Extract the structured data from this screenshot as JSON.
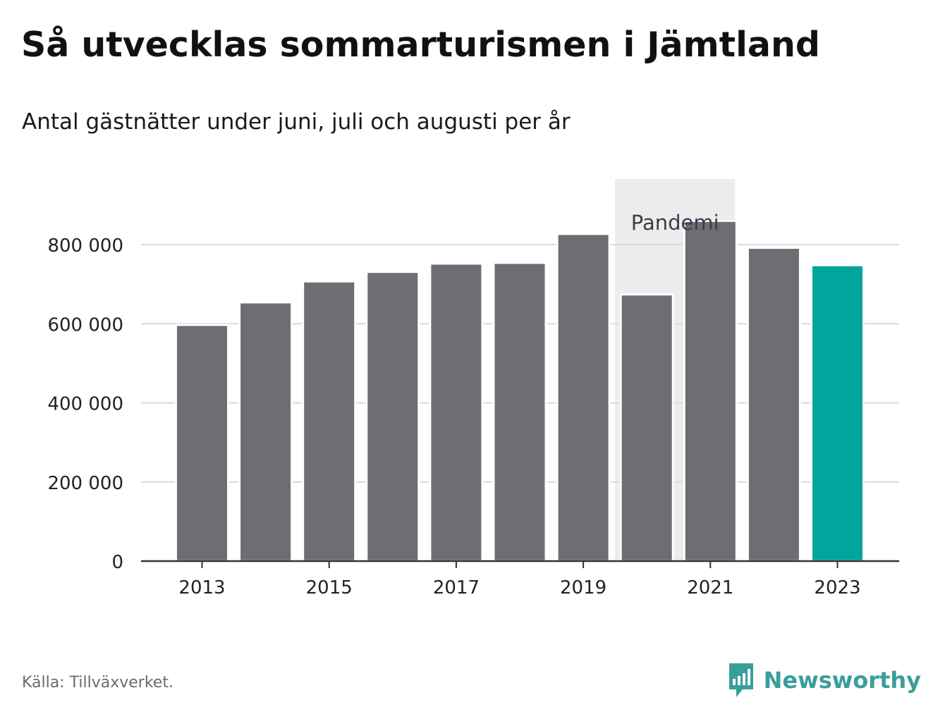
{
  "header": {
    "title": "Så utvecklas sommarturismen i Jämtland",
    "subtitle": "Antal gästnätter under juni, juli och augusti per år"
  },
  "footer": {
    "source": "Källa: Tillväxverket.",
    "brand": "Newsworthy"
  },
  "colors": {
    "bar": "#6e6d73",
    "highlight": "#00a59b",
    "pandemic_band": "#ececec",
    "grid": "#dadada",
    "axis": "#333333",
    "brand": "#3a9e9a"
  },
  "icons": {
    "brand_logo": "newsworthy-logo-icon"
  },
  "chart_data": {
    "type": "bar",
    "categories": [
      "2013",
      "2014",
      "2015",
      "2016",
      "2017",
      "2018",
      "2019",
      "2020",
      "2021",
      "2022",
      "2023"
    ],
    "values": [
      597000,
      654000,
      707000,
      731000,
      752000,
      754000,
      827000,
      674000,
      860000,
      792000,
      748000
    ],
    "highlight_category": "2023",
    "x_tick_labels": [
      "2013",
      "2015",
      "2017",
      "2019",
      "2021",
      "2023"
    ],
    "y_ticks": [
      0,
      200000,
      400000,
      600000,
      800000
    ],
    "y_tick_labels": [
      "0",
      "200 000",
      "400 000",
      "600 000",
      "800 000"
    ],
    "ylim": [
      0,
      900000
    ],
    "grid": true,
    "annotation": {
      "label": "Pandemi",
      "from": "2020",
      "to": "2021"
    }
  }
}
